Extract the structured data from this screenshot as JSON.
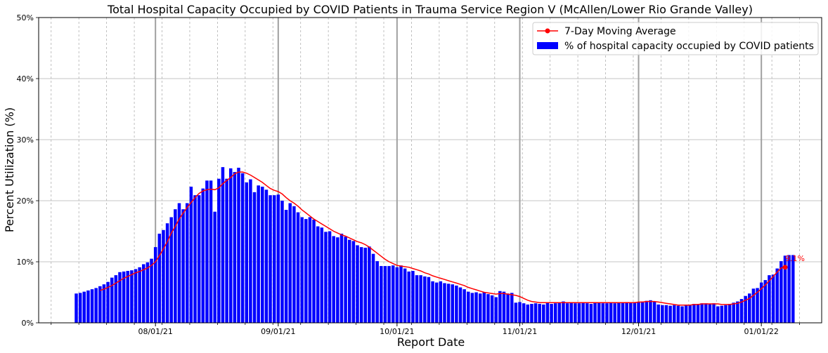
{
  "chart_data": {
    "type": "bar",
    "title": "Total Hospital Capacity Occupied by COVID Patients in Trauma Service Region V (McAllen/Lower Rio Grande Valley)",
    "xlabel": "Report Date",
    "ylabel": "Percent Utilization (%)",
    "ylim": [
      0,
      50
    ],
    "yticks": [
      0,
      10,
      20,
      30,
      40,
      50
    ],
    "ytick_labels": [
      "0%",
      "10%",
      "20%",
      "30%",
      "40%",
      "50%"
    ],
    "xticks": [
      "08/01/21",
      "09/01/21",
      "10/01/21",
      "11/01/21",
      "12/01/21",
      "01/01/22"
    ],
    "start_date": "2021-07-12",
    "grid": true,
    "legend_position": "top-right",
    "bar_series": {
      "name": "% of hospital capacity occupied by COVID patients",
      "color": "#0000ff",
      "values": [
        4.8,
        4.9,
        5.1,
        5.3,
        5.5,
        5.7,
        6.0,
        6.3,
        6.7,
        7.4,
        7.8,
        8.3,
        8.4,
        8.5,
        8.6,
        8.8,
        9.1,
        9.6,
        9.9,
        10.5,
        12.4,
        14.6,
        15.2,
        16.3,
        17.3,
        18.6,
        19.6,
        18.6,
        19.6,
        22.3,
        20.9,
        20.9,
        22.0,
        23.3,
        23.3,
        18.2,
        23.6,
        25.5,
        23.6,
        25.3,
        24.7,
        25.4,
        24.5,
        23.0,
        23.5,
        21.4,
        22.5,
        22.3,
        21.8,
        20.9,
        20.9,
        21.0,
        20.0,
        18.5,
        19.6,
        19.1,
        18.1,
        17.3,
        17.0,
        17.3,
        16.9,
        15.8,
        15.6,
        14.9,
        15.0,
        14.2,
        14.0,
        14.6,
        14.1,
        13.6,
        13.4,
        12.7,
        12.4,
        12.3,
        12.5,
        11.3,
        10.1,
        9.3,
        9.3,
        9.3,
        9.4,
        9.1,
        9.4,
        8.9,
        8.4,
        8.5,
        7.8,
        7.8,
        7.6,
        7.5,
        6.8,
        6.6,
        6.8,
        6.5,
        6.4,
        6.3,
        6.1,
        5.8,
        5.5,
        5.1,
        4.9,
        5.0,
        4.8,
        5.0,
        4.7,
        4.5,
        4.2,
        5.2,
        5.1,
        4.8,
        4.9,
        3.3,
        3.4,
        3.2,
        3.0,
        3.1,
        3.2,
        3.1,
        3.0,
        3.3,
        3.1,
        3.2,
        3.3,
        3.5,
        3.2,
        3.3,
        3.2,
        3.2,
        3.3,
        3.2,
        3.1,
        3.3,
        3.3,
        3.2,
        3.2,
        3.3,
        3.2,
        3.3,
        3.3,
        3.4,
        3.3,
        3.4,
        3.4,
        3.5,
        3.6,
        3.7,
        3.5,
        3.0,
        2.9,
        2.9,
        2.8,
        2.9,
        2.8,
        2.7,
        2.9,
        2.9,
        3.1,
        3.1,
        3.2,
        3.2,
        3.1,
        3.2,
        2.7,
        2.8,
        2.9,
        3.1,
        3.3,
        3.5,
        3.9,
        4.4,
        4.8,
        5.6,
        5.7,
        6.6,
        7.0,
        7.8,
        7.9,
        8.9,
        10.1,
        11.0,
        11.1,
        11.1
      ]
    },
    "line_series": {
      "name": "7-Day Moving Average",
      "color": "#ff0000",
      "values": [
        null,
        null,
        null,
        null,
        null,
        null,
        5.3,
        5.5,
        5.8,
        6.1,
        6.5,
        6.9,
        7.3,
        7.6,
        7.9,
        8.2,
        8.4,
        8.7,
        9.0,
        9.4,
        10.0,
        11.0,
        12.1,
        13.3,
        14.7,
        15.8,
        17.0,
        18.0,
        18.9,
        19.7,
        20.5,
        21.2,
        21.6,
        21.8,
        21.9,
        21.8,
        22.1,
        22.8,
        23.3,
        23.8,
        24.4,
        24.7,
        24.7,
        24.5,
        24.2,
        23.8,
        23.4,
        23.0,
        22.5,
        22.0,
        21.7,
        21.5,
        21.1,
        20.5,
        20.0,
        19.6,
        19.1,
        18.5,
        18.0,
        17.5,
        17.0,
        16.6,
        16.2,
        15.8,
        15.4,
        15.0,
        14.7,
        14.4,
        14.2,
        13.9,
        13.6,
        13.3,
        13.1,
        12.8,
        12.4,
        11.9,
        11.4,
        10.9,
        10.4,
        10.0,
        9.7,
        9.4,
        9.3,
        9.2,
        9.1,
        8.9,
        8.7,
        8.5,
        8.2,
        8.0,
        7.7,
        7.5,
        7.3,
        7.1,
        6.9,
        6.7,
        6.5,
        6.3,
        6.1,
        5.8,
        5.6,
        5.4,
        5.2,
        5.0,
        4.9,
        4.8,
        4.7,
        4.8,
        4.8,
        4.7,
        4.6,
        4.5,
        4.3,
        4.0,
        3.7,
        3.5,
        3.4,
        3.3,
        3.3,
        3.3,
        3.3,
        3.3,
        3.3,
        3.3,
        3.3,
        3.3,
        3.3,
        3.3,
        3.3,
        3.3,
        3.3,
        3.3,
        3.3,
        3.3,
        3.3,
        3.3,
        3.3,
        3.3,
        3.3,
        3.3,
        3.3,
        3.3,
        3.4,
        3.4,
        3.5,
        3.5,
        3.5,
        3.4,
        3.3,
        3.2,
        3.1,
        3.0,
        2.9,
        2.9,
        2.9,
        2.9,
        3.0,
        3.0,
        3.1,
        3.1,
        3.1,
        3.1,
        3.1,
        3.0,
        3.0,
        3.0,
        3.1,
        3.2,
        3.4,
        3.7,
        4.0,
        4.5,
        5.0,
        5.6,
        6.2,
        6.9,
        7.6,
        8.3,
        9.0,
        9.1
      ]
    },
    "annotation": {
      "text": "9.1%",
      "color": "#ff0000"
    }
  }
}
